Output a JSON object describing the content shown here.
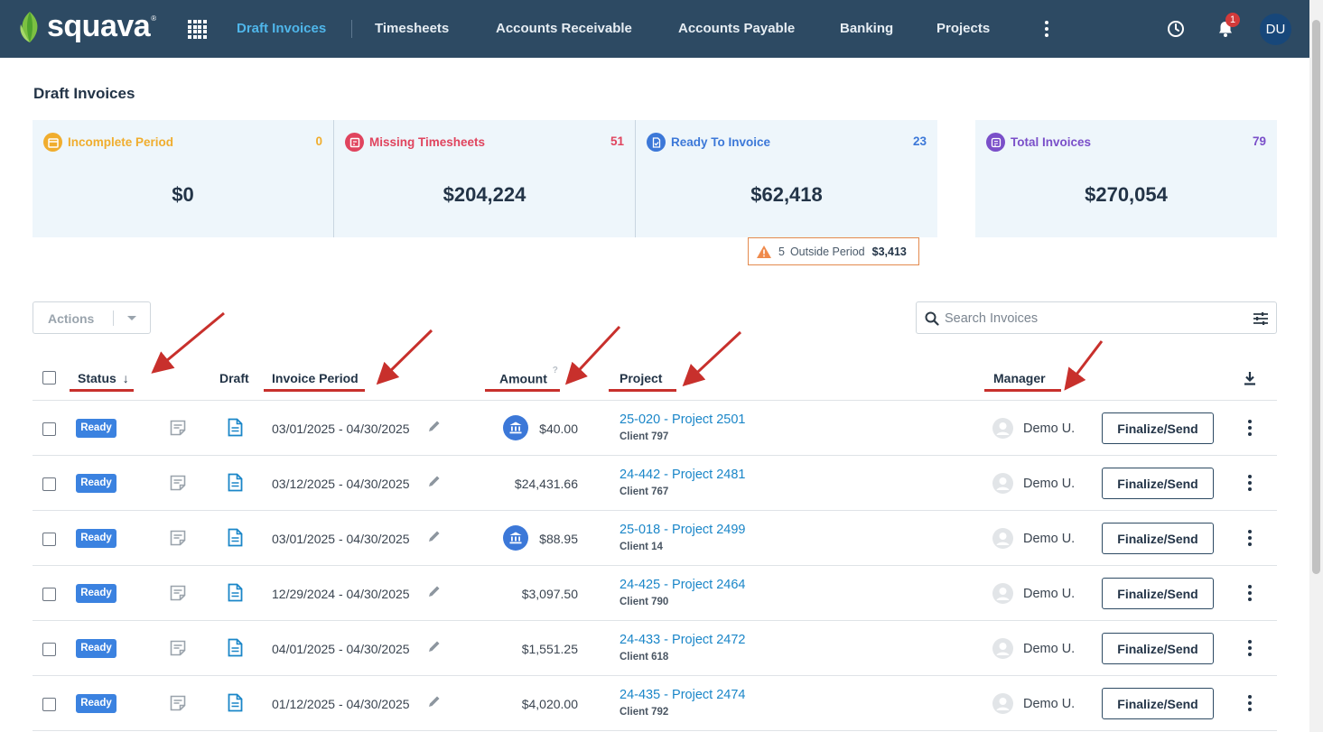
{
  "app": {
    "logo_text": "squava",
    "logo_tm": "®",
    "colors": {
      "nav_bg": "#2d4a63",
      "active": "#4fb6ea",
      "link": "#1a86c8",
      "badge": "#3b82e0",
      "annotation": "#c8302c"
    }
  },
  "nav": {
    "items": [
      {
        "label": "Draft Invoices",
        "active": true
      },
      {
        "label": "Timesheets"
      },
      {
        "label": "Accounts Receivable"
      },
      {
        "label": "Accounts Payable"
      },
      {
        "label": "Banking"
      },
      {
        "label": "Projects"
      }
    ],
    "notifications_count": "1",
    "user_initials": "DU",
    "icons": [
      "apps-grid-icon",
      "more-vertical-icon",
      "clock-icon",
      "bell-icon"
    ]
  },
  "page": {
    "title": "Draft Invoices"
  },
  "summary": {
    "incomplete": {
      "label": "Incomplete Period",
      "count": "0",
      "amount": "$0",
      "color": "#f0ad2e"
    },
    "missing": {
      "label": "Missing Timesheets",
      "count": "51",
      "amount": "$204,224",
      "color": "#e0445e"
    },
    "ready": {
      "label": "Ready To Invoice",
      "count": "23",
      "amount": "$62,418",
      "color": "#3c78d8"
    },
    "total": {
      "label": "Total Invoices",
      "count": "79",
      "amount": "$270,054",
      "color": "#7a4fc9"
    },
    "outside_period": {
      "count": "5",
      "label": "Outside Period",
      "amount": "$3,413"
    }
  },
  "controls": {
    "actions_label": "Actions",
    "search_placeholder": "Search Invoices"
  },
  "table": {
    "headers": {
      "status": "Status",
      "status_sort": "↓",
      "draft": "Draft",
      "period": "Invoice Period",
      "amount": "Amount",
      "amount_help": "?",
      "project": "Project",
      "manager": "Manager"
    },
    "finalize_label": "Finalize/Send",
    "rows": [
      {
        "status": "Ready",
        "period": "03/01/2025 - 04/30/2025",
        "bank": true,
        "amount": "$40.00",
        "project": "25-020 - Project 2501",
        "client": "Client 797",
        "manager": "Demo U."
      },
      {
        "status": "Ready",
        "period": "03/12/2025 - 04/30/2025",
        "bank": false,
        "amount": "$24,431.66",
        "project": "24-442 - Project 2481",
        "client": "Client 767",
        "manager": "Demo U."
      },
      {
        "status": "Ready",
        "period": "03/01/2025 - 04/30/2025",
        "bank": true,
        "amount": "$88.95",
        "project": "25-018 - Project 2499",
        "client": "Client 14",
        "manager": "Demo U."
      },
      {
        "status": "Ready",
        "period": "12/29/2024 - 04/30/2025",
        "bank": false,
        "amount": "$3,097.50",
        "project": "24-425 - Project 2464",
        "client": "Client 790",
        "manager": "Demo U."
      },
      {
        "status": "Ready",
        "period": "04/01/2025 - 04/30/2025",
        "bank": false,
        "amount": "$1,551.25",
        "project": "24-433 - Project 2472",
        "client": "Client 618",
        "manager": "Demo U."
      },
      {
        "status": "Ready",
        "period": "01/12/2025 - 04/30/2025",
        "bank": false,
        "amount": "$4,020.00",
        "project": "24-435 - Project 2474",
        "client": "Client 792",
        "manager": "Demo U."
      }
    ]
  }
}
